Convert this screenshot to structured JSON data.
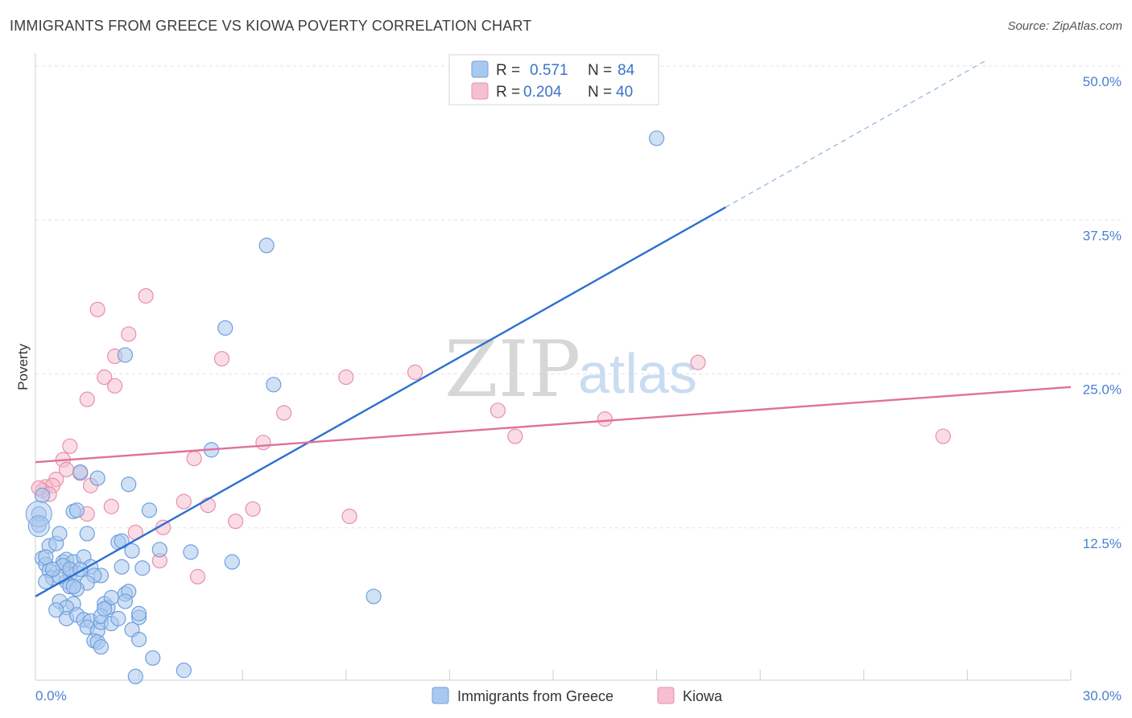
{
  "title": "IMMIGRANTS FROM GREECE VS KIOWA POVERTY CORRELATION CHART",
  "source": "Source: ZipAtlas.com",
  "watermark": {
    "part1": "ZIP",
    "part2": "atlas"
  },
  "colors": {
    "blue_fill": "#a9c8ef",
    "blue_stroke": "#6f9fdc",
    "blue_line": "#2e6fd0",
    "pink_fill": "#f6bfd0",
    "pink_stroke": "#e88fae",
    "pink_line": "#e0709a",
    "grid": "#e3e3e3",
    "tick_text": "#4a7fd4"
  },
  "legend": {
    "rows": [
      {
        "r_label": "R =",
        "r_value": "0.571",
        "n_label": "N =",
        "n_value": "84"
      },
      {
        "r_label": "R =",
        "r_value": "0.204",
        "n_label": "N =",
        "n_value": "40"
      }
    ]
  },
  "chart_data": {
    "type": "scatter",
    "title": "IMMIGRANTS FROM GREECE VS KIOWA POVERTY CORRELATION CHART",
    "xlabel": "",
    "ylabel": "Poverty",
    "xlim": [
      0,
      30
    ],
    "ylim": [
      0,
      50
    ],
    "x_tick_labels": [
      {
        "value": 0,
        "label": "0.0%"
      },
      {
        "value": 30,
        "label": "30.0%"
      }
    ],
    "x_minor_ticks": [
      3,
      6,
      9,
      12,
      15,
      18,
      21,
      24,
      27,
      30
    ],
    "y_ticks": [
      {
        "value": 12.5,
        "label": "12.5%"
      },
      {
        "value": 25,
        "label": "25.0%"
      },
      {
        "value": 37.5,
        "label": "37.5%"
      },
      {
        "value": 50,
        "label": "50.0%"
      }
    ],
    "grid": true,
    "series": [
      {
        "name": "Immigrants from Greece",
        "color": "blue",
        "R": 0.571,
        "N": 84,
        "trend": {
          "x0": 0,
          "y0": 6.8,
          "x1": 20.0,
          "y1": 38.4,
          "dash_to_x": 27.5
        },
        "points": [
          [
            18.0,
            44.0
          ],
          [
            6.7,
            35.3
          ],
          [
            5.5,
            28.6
          ],
          [
            2.6,
            26.4
          ],
          [
            6.9,
            24.0
          ],
          [
            5.1,
            18.7
          ],
          [
            0.2,
            15.0
          ],
          [
            0.1,
            13.5
          ],
          [
            0.1,
            12.6
          ],
          [
            0.4,
            10.9
          ],
          [
            0.2,
            9.9
          ],
          [
            0.3,
            9.4
          ],
          [
            0.4,
            8.9
          ],
          [
            0.5,
            8.3
          ],
          [
            0.3,
            8.0
          ],
          [
            0.6,
            11.1
          ],
          [
            0.7,
            11.9
          ],
          [
            0.8,
            9.6
          ],
          [
            0.9,
            9.8
          ],
          [
            1.1,
            9.6
          ],
          [
            1.0,
            8.6
          ],
          [
            0.9,
            8.0
          ],
          [
            1.0,
            7.6
          ],
          [
            1.2,
            8.7
          ],
          [
            0.8,
            9.3
          ],
          [
            0.7,
            8.4
          ],
          [
            1.1,
            13.7
          ],
          [
            1.2,
            13.8
          ],
          [
            1.3,
            16.9
          ],
          [
            1.4,
            10.0
          ],
          [
            1.5,
            11.9
          ],
          [
            1.6,
            9.2
          ],
          [
            1.8,
            16.4
          ],
          [
            2.7,
            15.9
          ],
          [
            2.4,
            11.2
          ],
          [
            2.5,
            11.3
          ],
          [
            2.8,
            10.5
          ],
          [
            3.3,
            13.8
          ],
          [
            3.1,
            9.1
          ],
          [
            3.6,
            10.6
          ],
          [
            4.5,
            10.4
          ],
          [
            5.7,
            9.6
          ],
          [
            1.9,
            8.5
          ],
          [
            1.7,
            8.5
          ],
          [
            1.5,
            7.9
          ],
          [
            1.1,
            6.2
          ],
          [
            0.7,
            6.4
          ],
          [
            0.9,
            5.9
          ],
          [
            0.6,
            5.7
          ],
          [
            0.9,
            5.0
          ],
          [
            1.2,
            5.3
          ],
          [
            1.4,
            4.9
          ],
          [
            1.6,
            4.8
          ],
          [
            1.5,
            4.3
          ],
          [
            1.8,
            4.0
          ],
          [
            1.9,
            4.7
          ],
          [
            2.0,
            6.2
          ],
          [
            2.1,
            5.9
          ],
          [
            1.9,
            5.2
          ],
          [
            2.2,
            4.6
          ],
          [
            2.4,
            5.0
          ],
          [
            2.6,
            7.0
          ],
          [
            2.2,
            6.7
          ],
          [
            2.7,
            7.2
          ],
          [
            2.6,
            6.4
          ],
          [
            3.0,
            5.1
          ],
          [
            2.8,
            4.1
          ],
          [
            3.0,
            3.3
          ],
          [
            1.7,
            3.2
          ],
          [
            1.8,
            3.1
          ],
          [
            1.9,
            2.7
          ],
          [
            3.4,
            1.8
          ],
          [
            2.9,
            0.3
          ],
          [
            4.3,
            0.8
          ],
          [
            9.8,
            6.8
          ],
          [
            1.2,
            7.4
          ],
          [
            0.5,
            9.0
          ],
          [
            1.0,
            9.0
          ],
          [
            0.3,
            10.0
          ],
          [
            1.3,
            9.0
          ],
          [
            2.5,
            9.2
          ],
          [
            1.1,
            7.6
          ],
          [
            3.0,
            5.4
          ],
          [
            2.0,
            5.8
          ]
        ]
      },
      {
        "name": "Kiowa",
        "color": "pink",
        "R": 0.204,
        "N": 40,
        "trend": {
          "x0": 0,
          "y0": 17.7,
          "x1": 30,
          "y1": 23.8
        },
        "points": [
          [
            3.2,
            31.2
          ],
          [
            1.8,
            30.1
          ],
          [
            2.7,
            28.1
          ],
          [
            2.3,
            26.3
          ],
          [
            5.4,
            26.1
          ],
          [
            2.0,
            24.6
          ],
          [
            2.3,
            23.9
          ],
          [
            1.5,
            22.8
          ],
          [
            9.0,
            24.6
          ],
          [
            11.0,
            25.0
          ],
          [
            19.2,
            25.8
          ],
          [
            7.2,
            21.7
          ],
          [
            13.4,
            21.9
          ],
          [
            16.5,
            21.2
          ],
          [
            13.9,
            19.8
          ],
          [
            26.3,
            19.8
          ],
          [
            6.6,
            19.3
          ],
          [
            1.0,
            19.0
          ],
          [
            4.6,
            18.0
          ],
          [
            0.8,
            17.9
          ],
          [
            0.9,
            17.1
          ],
          [
            1.3,
            16.8
          ],
          [
            0.6,
            16.3
          ],
          [
            0.3,
            15.7
          ],
          [
            0.5,
            15.8
          ],
          [
            0.2,
            15.4
          ],
          [
            0.4,
            15.1
          ],
          [
            1.6,
            15.8
          ],
          [
            2.2,
            14.1
          ],
          [
            4.3,
            14.5
          ],
          [
            5.0,
            14.2
          ],
          [
            6.3,
            13.9
          ],
          [
            9.1,
            13.3
          ],
          [
            1.5,
            13.5
          ],
          [
            5.8,
            12.9
          ],
          [
            3.7,
            12.4
          ],
          [
            2.9,
            12.0
          ],
          [
            3.6,
            9.7
          ],
          [
            4.7,
            8.4
          ],
          [
            0.1,
            15.6
          ]
        ]
      }
    ]
  }
}
